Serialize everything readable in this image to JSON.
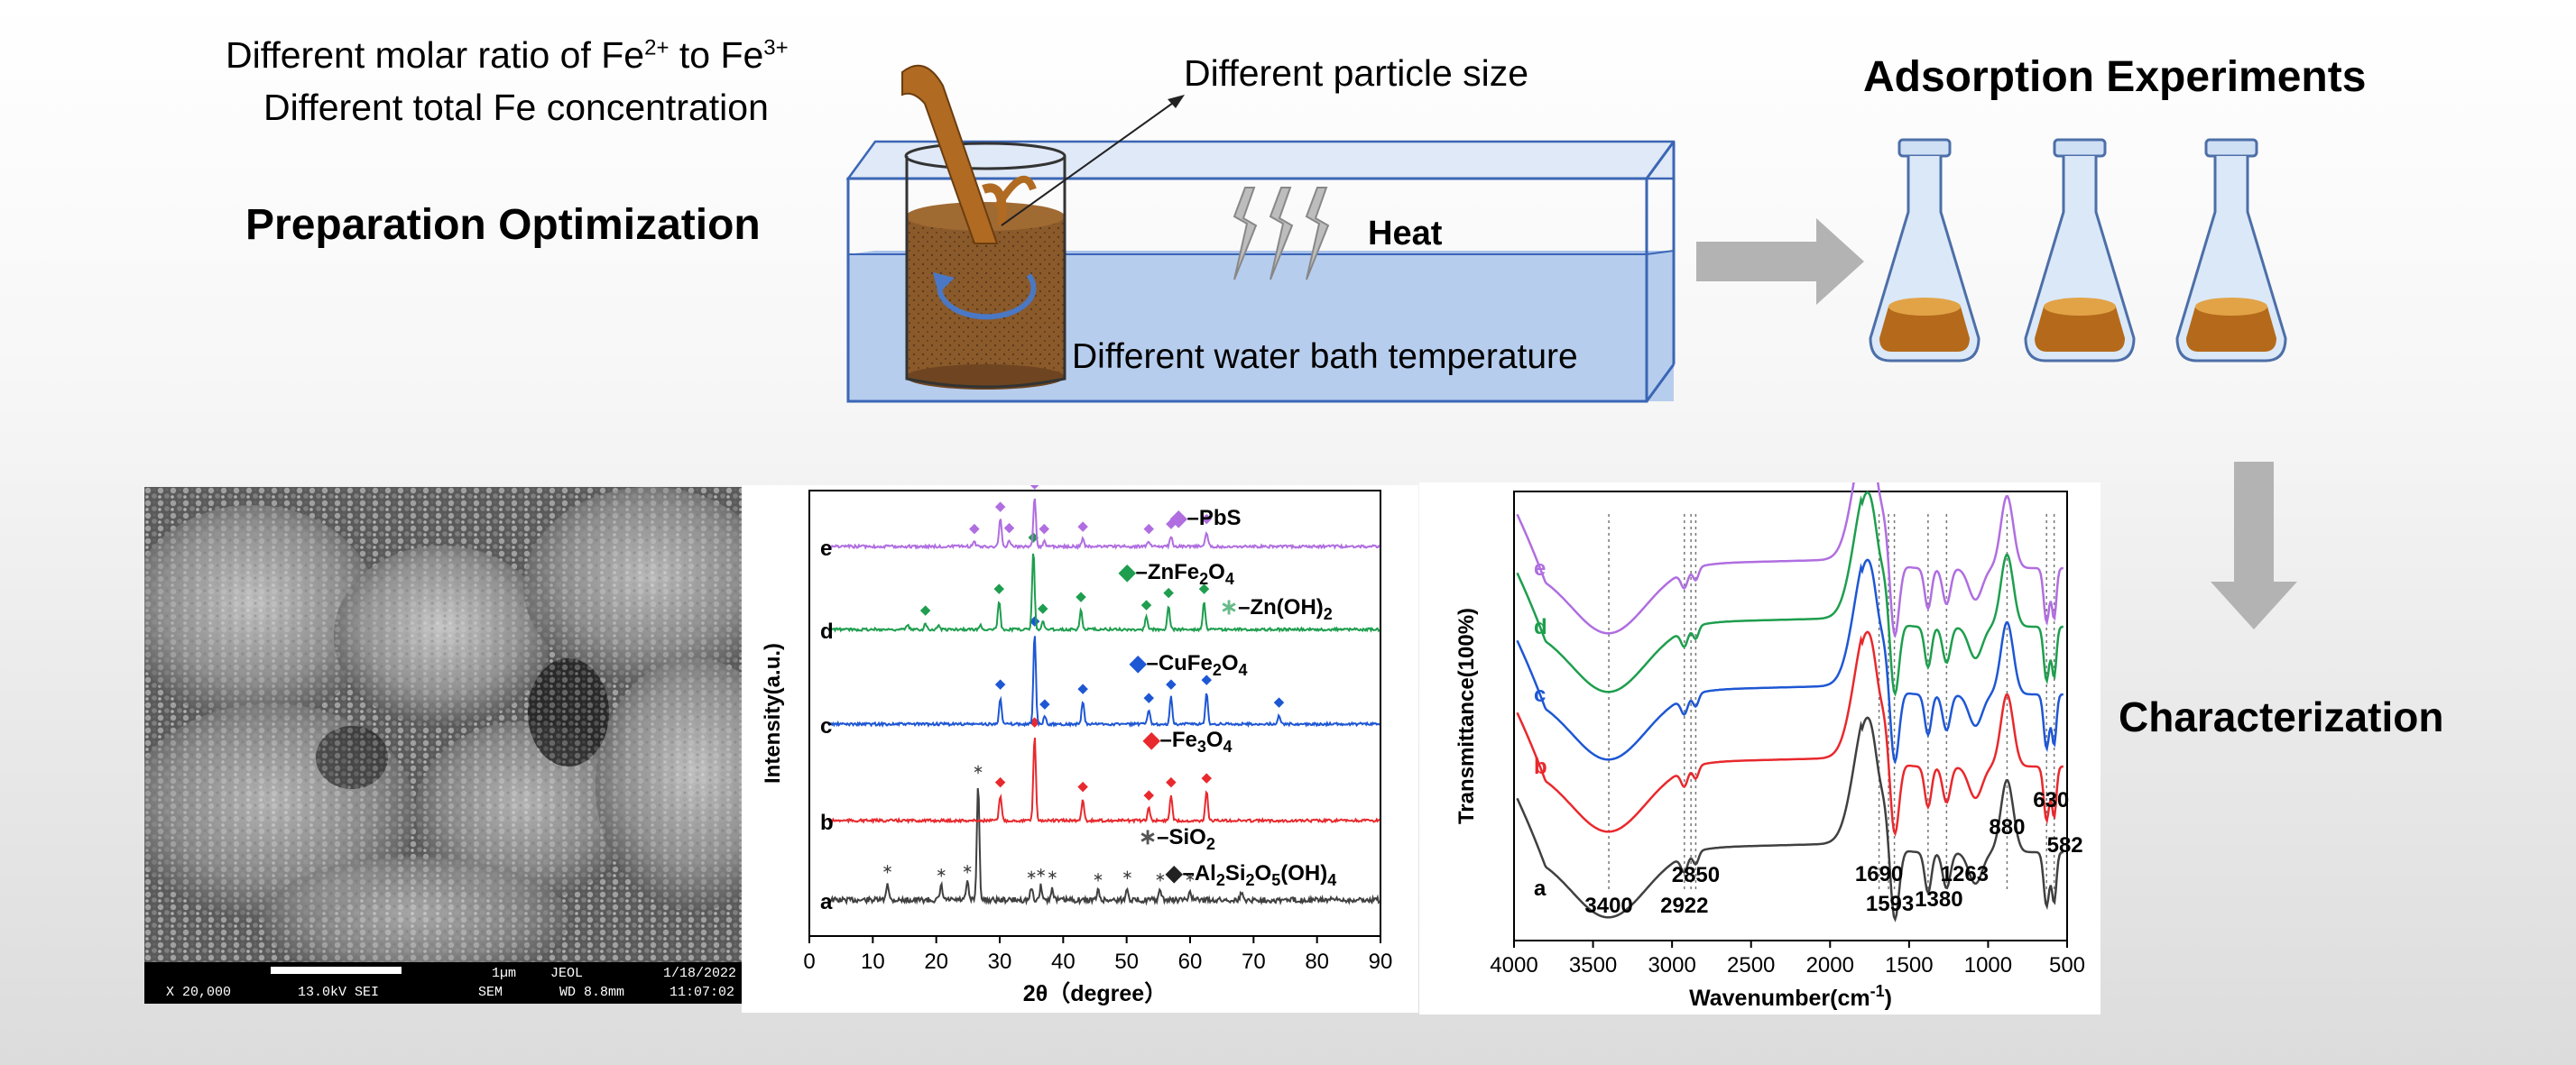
{
  "top": {
    "ratio_text": "Different molar ratio of Fe",
    "ratio_sup1": "2+",
    "ratio_to": " to Fe",
    "ratio_sup2": "3+",
    "total_fe_text": "Different total Fe concentration",
    "prep_title": "Preparation Optimization",
    "particle_size": "Different particle size",
    "heat": "Heat",
    "water_bath": "Different water bath temperature",
    "adsorption_title": "Adsorption Experiments",
    "characterization_title": "Characterization"
  },
  "sem": {
    "scale": "1µm",
    "brand": "JEOL",
    "date": "1/18/2022",
    "magnification": "X 20,000",
    "voltage": "13.0kV SEI",
    "mode": "SEM",
    "wd": "WD 8.8mm",
    "time": "11:07:02"
  },
  "chart_data": [
    {
      "type": "line",
      "xlabel": "2θ（degree）",
      "ylabel": "Intensity(a.u.)",
      "xlim": [
        0,
        90
      ],
      "x_ticks": [
        "0",
        "10",
        "20",
        "30",
        "40",
        "50",
        "60",
        "70",
        "80",
        "90"
      ],
      "series": [
        {
          "name": "a",
          "color": "#404040",
          "peaks": [
            [
              12.3,
              0.15
            ],
            [
              20.8,
              0.12
            ],
            [
              24.9,
              0.15
            ],
            [
              26.6,
              1.0
            ],
            [
              35.0,
              0.1
            ],
            [
              36.5,
              0.12
            ],
            [
              38.3,
              0.1
            ],
            [
              45.5,
              0.08
            ],
            [
              50.1,
              0.1
            ],
            [
              55.3,
              0.08
            ],
            [
              60.0,
              0.08
            ],
            [
              68.1,
              0.06
            ]
          ]
        },
        {
          "name": "b",
          "color": "#e8292d",
          "peaks": [
            [
              30.1,
              0.3
            ],
            [
              35.5,
              1.0
            ],
            [
              43.1,
              0.25
            ],
            [
              53.5,
              0.15
            ],
            [
              57.0,
              0.3
            ],
            [
              62.6,
              0.35
            ]
          ]
        },
        {
          "name": "c",
          "color": "#1e57d4",
          "peaks": [
            [
              30.1,
              0.3
            ],
            [
              35.5,
              1.0
            ],
            [
              37.1,
              0.08
            ],
            [
              43.1,
              0.25
            ],
            [
              53.5,
              0.15
            ],
            [
              57.0,
              0.3
            ],
            [
              62.6,
              0.35
            ],
            [
              74.0,
              0.1
            ]
          ]
        },
        {
          "name": "d",
          "color": "#1e9e4e",
          "peaks": [
            [
              15.5,
              0.05
            ],
            [
              18.3,
              0.08
            ],
            [
              20.4,
              0.05
            ],
            [
              27.0,
              0.05
            ],
            [
              29.9,
              0.35
            ],
            [
              35.3,
              1.0
            ],
            [
              36.8,
              0.1
            ],
            [
              42.8,
              0.25
            ],
            [
              53.1,
              0.15
            ],
            [
              56.6,
              0.3
            ],
            [
              62.2,
              0.35
            ]
          ]
        },
        {
          "name": "e",
          "color": "#b06ee0",
          "peaks": [
            [
              26.0,
              0.1
            ],
            [
              30.1,
              0.55
            ],
            [
              31.5,
              0.12
            ],
            [
              35.5,
              1.0
            ],
            [
              37.0,
              0.1
            ],
            [
              43.1,
              0.15
            ],
            [
              53.5,
              0.1
            ],
            [
              57.0,
              0.2
            ],
            [
              62.6,
              0.3
            ]
          ]
        }
      ],
      "legend": [
        {
          "symbol": "◆",
          "symbol_color": "#b06ee0",
          "label": "–PbS"
        },
        {
          "symbol": "◆",
          "symbol_color": "#1e9e4e",
          "label": "–ZnFe",
          "sub": "2",
          "label2": "O",
          "sub2": "4"
        },
        {
          "symbol": "∗",
          "symbol_color": "#66bb88",
          "label": "–Zn(OH)",
          "sub": "2"
        },
        {
          "symbol": "◆",
          "symbol_color": "#1e57d4",
          "label": "–CuFe",
          "sub": "2",
          "label2": "O",
          "sub2": "4"
        },
        {
          "symbol": "◆",
          "symbol_color": "#e8292d",
          "label": "–Fe",
          "sub": "3",
          "label2": "O",
          "sub2": "4"
        },
        {
          "symbol": "∗",
          "symbol_color": "#555555",
          "label": "–SiO",
          "sub": "2"
        },
        {
          "symbol": "◆",
          "symbol_color": "#222222",
          "label": "–Al",
          "sub": "2",
          "label2": "Si",
          "sub2": "2",
          "label3": "O",
          "sub3": "5",
          "label4": "(OH)",
          "sub4": "4"
        }
      ]
    },
    {
      "type": "line",
      "xlabel": "Wavenumber(cm",
      "xlabel_sup": "-1",
      "xlabel_end": ")",
      "ylabel": "Transmittance(100%)",
      "xlim": [
        4000,
        500
      ],
      "x_ticks": [
        "4000",
        "3500",
        "3000",
        "2500",
        "2000",
        "1500",
        "1000",
        "500"
      ],
      "series": [
        {
          "name": "a",
          "color": "#404040"
        },
        {
          "name": "b",
          "color": "#e8292d"
        },
        {
          "name": "c",
          "color": "#1e57d4"
        },
        {
          "name": "d",
          "color": "#1e9e4e"
        },
        {
          "name": "e",
          "color": "#b06ee0"
        }
      ],
      "marked_bands": [
        "3400",
        "2922",
        "2850",
        "1690",
        "1593",
        "1380",
        "1263",
        "880",
        "630",
        "582"
      ]
    }
  ]
}
